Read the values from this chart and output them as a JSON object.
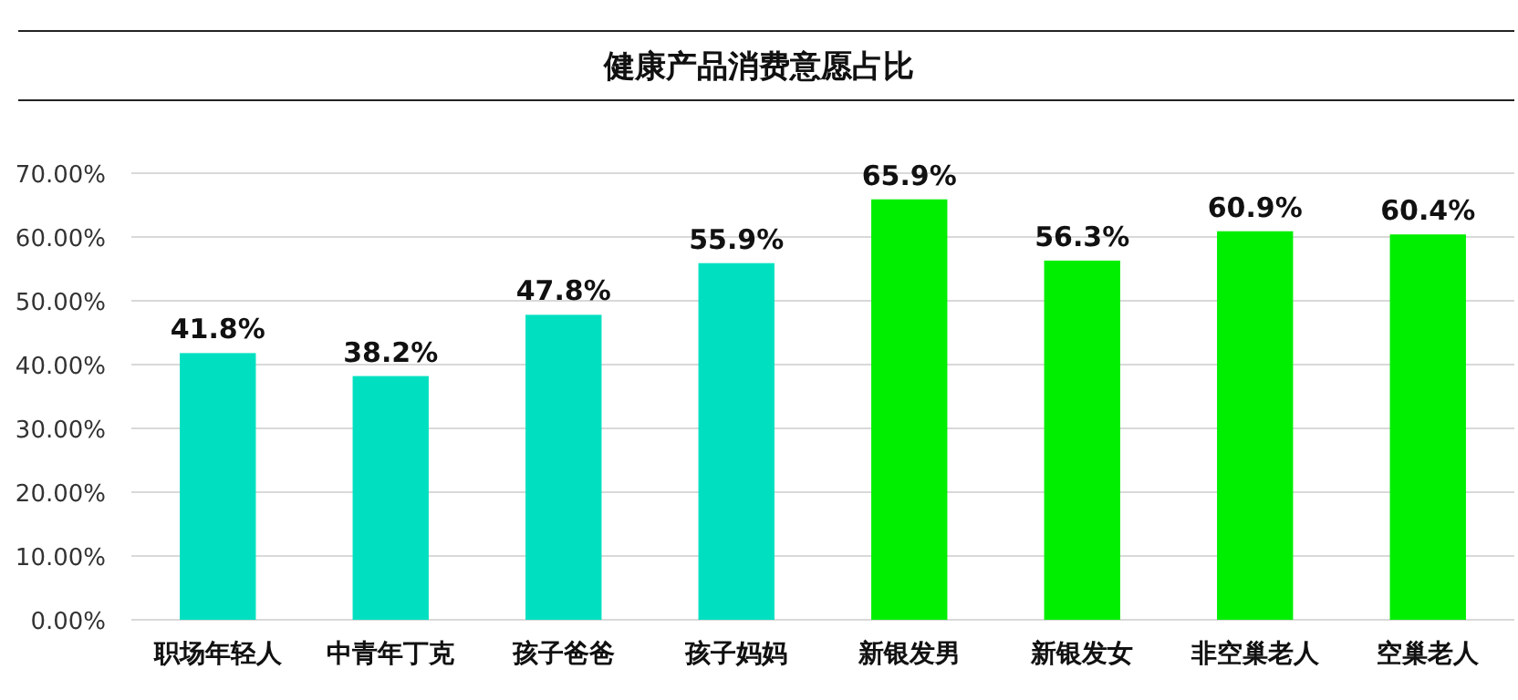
{
  "chart_data": {
    "type": "bar",
    "title": "健康产品消费意愿占比",
    "categories": [
      "职场年轻人",
      "中青年丁克",
      "孩子爸爸",
      "孩子妈妈",
      "新银发男",
      "新银发女",
      "非空巢老人",
      "空巢老人"
    ],
    "values": [
      41.8,
      38.2,
      47.8,
      55.9,
      65.9,
      56.3,
      60.9,
      60.4
    ],
    "colors": [
      "#00e0c0",
      "#00e0c0",
      "#00e0c0",
      "#00e0c0",
      "#00ee00",
      "#00ee00",
      "#00ee00",
      "#00ee00"
    ],
    "value_labels": [
      "41.8%",
      "38.2%",
      "47.8%",
      "55.9%",
      "65.9%",
      "56.3%",
      "60.9%",
      "60.4%"
    ],
    "ylim": [
      0,
      70
    ],
    "yticks": [
      {
        "value": 0,
        "label": "0.00%"
      },
      {
        "value": 10,
        "label": "10.00%"
      },
      {
        "value": 20,
        "label": "20.00%"
      },
      {
        "value": 30,
        "label": "30.00%"
      },
      {
        "value": 40,
        "label": "40.00%"
      },
      {
        "value": 50,
        "label": "50.00%"
      },
      {
        "value": 60,
        "label": "60.00%"
      },
      {
        "value": 70,
        "label": "70.00%"
      }
    ],
    "grid": "y"
  }
}
